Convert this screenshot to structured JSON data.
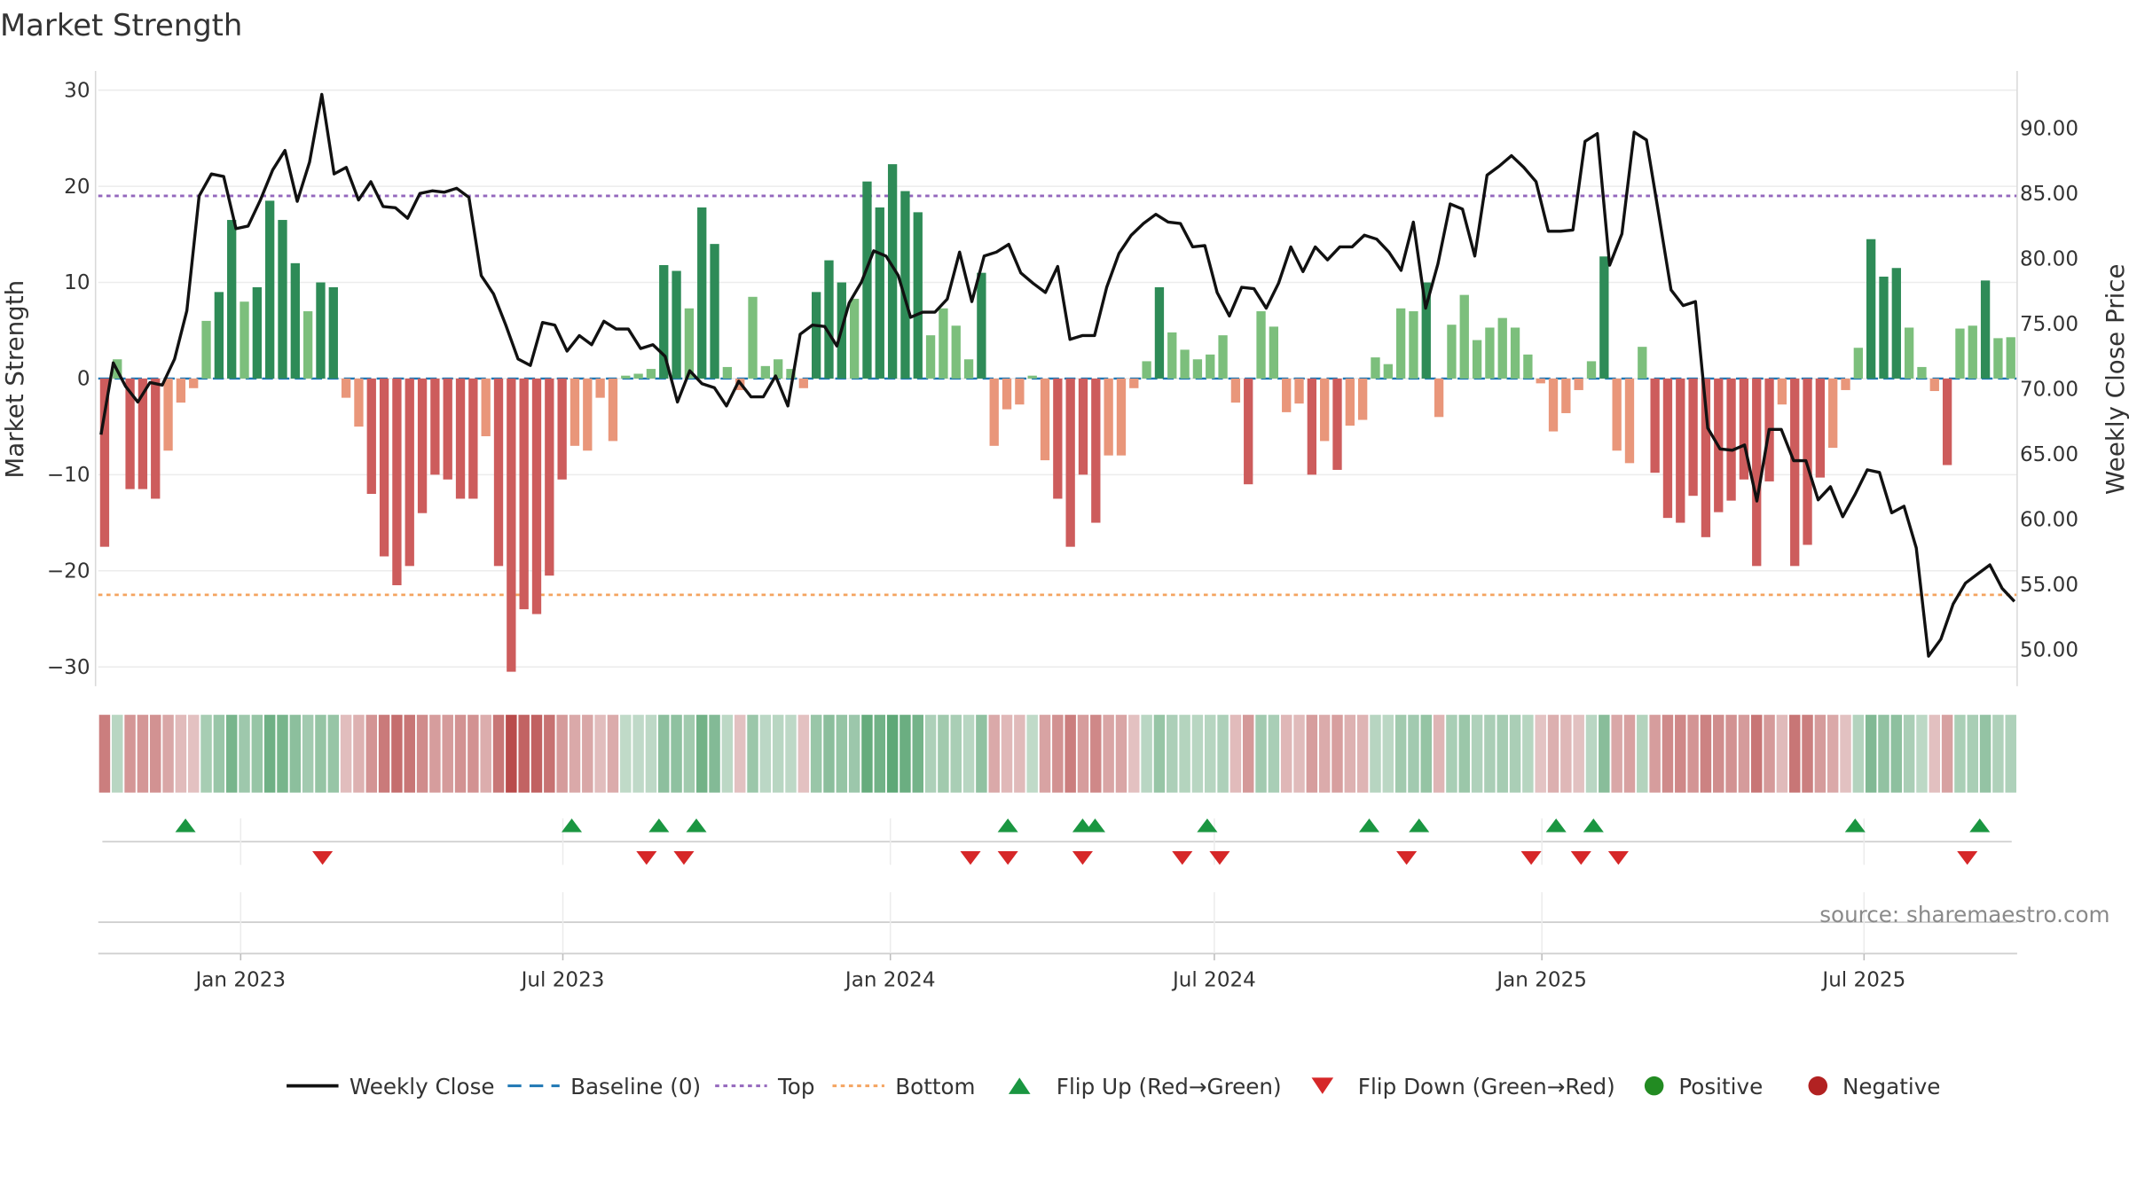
{
  "chart_data": {
    "type": "bar",
    "title": "Market Strength",
    "ylabel_left": "Market Strength",
    "ylabel_right": "Weekly Close Price",
    "source_text": "source: sharemaestro.com",
    "left_axis": {
      "min": -32,
      "max": 32,
      "ticks": [
        30,
        20,
        10,
        0,
        -10,
        -20,
        -30
      ],
      "tick_labels": [
        "30",
        "20",
        "10",
        "0",
        "−10",
        "−20",
        "−30"
      ]
    },
    "right_axis": {
      "min": 47.2,
      "max": 94.4,
      "ticks": [
        90,
        85,
        80,
        75,
        70,
        65,
        60,
        55,
        50
      ],
      "tick_labels": [
        "90.00",
        "85.00",
        "80.00",
        "75.00",
        "70.00",
        "65.00",
        "60.00",
        "55.00",
        "50.00"
      ]
    },
    "x_axis": {
      "start": "2022-10-13",
      "end": "2025-09-25",
      "ticks": [
        "2023-01-01",
        "2023-07-01",
        "2024-01-01",
        "2024-07-01",
        "2025-01-01",
        "2025-07-01"
      ],
      "tick_labels": [
        "Jan 2023",
        "Jul 2023",
        "Jan 2024",
        "Jul 2024",
        "Jan 2025",
        "Jul 2025"
      ]
    },
    "top_level": 19,
    "bottom_level": -22.5,
    "baseline": 0,
    "strength": [
      -17.5,
      2,
      -11.5,
      -11.5,
      -12.5,
      -7.5,
      -2.5,
      -1,
      6,
      9,
      16.5,
      8,
      9.5,
      18.5,
      16.5,
      12,
      7,
      10,
      9.5,
      -2,
      -5,
      -12,
      -18.5,
      -21.5,
      -19.5,
      -14,
      -10,
      -10.5,
      -12.5,
      -12.5,
      -6,
      -19.5,
      -30.5,
      -24,
      -24.5,
      -20.5,
      -10.5,
      -7,
      -7.5,
      -2,
      -6.5,
      0.3,
      0.5,
      1,
      11.8,
      11.2,
      7.3,
      17.8,
      14,
      1.2,
      -1.2,
      8.5,
      1.3,
      2,
      1,
      -1,
      9,
      12.3,
      10,
      8.3,
      20.5,
      17.8,
      22.3,
      19.5,
      17.3,
      4.5,
      7.3,
      5.5,
      2,
      11,
      -7,
      -3.2,
      -2.7,
      0.3,
      -8.5,
      -12.5,
      -17.5,
      -10,
      -15,
      -8,
      -8,
      -1,
      1.8,
      9.5,
      4.8,
      3,
      2,
      2.5,
      4.5,
      -2.5,
      -11,
      7,
      5.4,
      -3.5,
      -2.6,
      -10,
      -6.5,
      -9.5,
      -4.9,
      -4.3,
      2.2,
      1.5,
      7.3,
      7,
      10,
      -4,
      5.6,
      8.7,
      4,
      5.3,
      6.3,
      5.3,
      2.5,
      -0.5,
      -5.5,
      -3.6,
      -1.2,
      1.8,
      12.7,
      -7.5,
      -8.8,
      3.3,
      -9.8,
      -14.5,
      -15,
      -12.2,
      -16.5,
      -13.9,
      -12.7,
      -10.5,
      -19.5,
      -10.7,
      -2.7,
      -19.5,
      -17.3,
      -10.3,
      -7.2,
      -1.2,
      3.2,
      14.5,
      10.6,
      11.5,
      5.3,
      1.2,
      -1.3,
      -9,
      5.2,
      5.5,
      10.2,
      4.2,
      4.3
    ],
    "weekly_close": [
      66.5,
      72,
      70.2,
      69,
      70.5,
      70.3,
      72.3,
      76,
      84.8,
      86.5,
      86.3,
      82.3,
      82.5,
      84.5,
      86.8,
      88.3,
      84.4,
      87.4,
      92.6,
      86.5,
      87,
      84.5,
      85.9,
      84,
      83.9,
      83.1,
      85,
      85.2,
      85.1,
      85.4,
      84.7,
      78.7,
      77.3,
      74.9,
      72.3,
      71.8,
      75.1,
      74.9,
      72.9,
      74.1,
      73.4,
      75.2,
      74.6,
      74.6,
      73.1,
      73.4,
      72.5,
      69,
      71.4,
      70.4,
      70.1,
      68.7,
      70.6,
      69.4,
      69.4,
      71,
      68.7,
      74.2,
      74.9,
      74.8,
      73.3,
      76.6,
      78.2,
      80.6,
      80.2,
      78.7,
      75.5,
      75.9,
      75.9,
      76.9,
      80.5,
      76.7,
      80.2,
      80.5,
      81.1,
      78.9,
      78.1,
      77.4,
      79.4,
      73.8,
      74.1,
      74.1,
      77.8,
      80.4,
      81.8,
      82.7,
      83.4,
      82.8,
      82.7,
      80.9,
      81,
      77.4,
      75.6,
      77.8,
      77.7,
      76.2,
      78.1,
      80.9,
      79,
      80.9,
      79.9,
      80.9,
      80.9,
      81.8,
      81.5,
      80.5,
      79.1,
      82.8,
      76.2,
      79.6,
      84.2,
      83.8,
      80.2,
      86.4,
      87.1,
      87.9,
      87,
      85.9,
      82.1,
      82.1,
      82.2,
      89,
      89.6,
      79.5,
      81.9,
      89.7,
      89.1,
      83.4,
      77.6,
      76.4,
      76.7,
      67,
      65.4,
      65.3,
      65.7,
      61.4,
      66.9,
      66.9,
      64.5,
      64.5,
      61.5,
      62.5,
      60.2,
      61.9,
      63.8,
      63.6,
      60.5,
      61,
      57.8,
      49.5,
      50.8,
      53.5,
      55.1,
      55.8,
      56.5,
      54.7,
      53.7
    ],
    "flip_up": [
      "2022-12-01",
      "2023-07-06",
      "2023-08-24",
      "2023-09-14",
      "2024-03-07",
      "2024-04-18",
      "2024-04-25",
      "2024-06-27",
      "2024-09-26",
      "2024-10-24",
      "2025-01-09",
      "2025-01-30",
      "2025-06-26",
      "2025-09-04"
    ],
    "flip_down": [
      "2023-02-16",
      "2023-08-17",
      "2023-09-07",
      "2024-02-15",
      "2024-03-07",
      "2024-04-18",
      "2024-06-13",
      "2024-07-04",
      "2024-10-17",
      "2024-12-26",
      "2025-01-23",
      "2025-02-13",
      "2025-08-28"
    ],
    "colors": {
      "strong_green": "#2e8b57",
      "light_green": "#7cbf7c",
      "strong_red": "#cd5c5c",
      "light_red": "#e9967a",
      "weekly_close": "#111111",
      "baseline": "#1f77b4",
      "top": "#9467bd",
      "bottom": "#f4a460",
      "flip_up": "#1a9641",
      "flip_down": "#d62728",
      "positive": "#228b22",
      "negative": "#b22222"
    },
    "legend": [
      {
        "label": "Weekly Close",
        "symbol": "line",
        "color": "#111111"
      },
      {
        "label": "Baseline (0)",
        "symbol": "dash",
        "color": "#1f77b4"
      },
      {
        "label": "Top",
        "symbol": "dot",
        "color": "#9467bd"
      },
      {
        "label": "Bottom",
        "symbol": "dot",
        "color": "#f4a460"
      },
      {
        "label": "Flip Up (Red→Green)",
        "symbol": "tri-up",
        "color": "#1a9641"
      },
      {
        "label": "Flip Down (Green→Red)",
        "symbol": "tri-down",
        "color": "#d62728"
      },
      {
        "label": "Positive",
        "symbol": "circle",
        "color": "#228b22"
      },
      {
        "label": "Negative",
        "symbol": "circle",
        "color": "#b22222"
      }
    ],
    "legend_position": "bottom",
    "grid": true
  }
}
